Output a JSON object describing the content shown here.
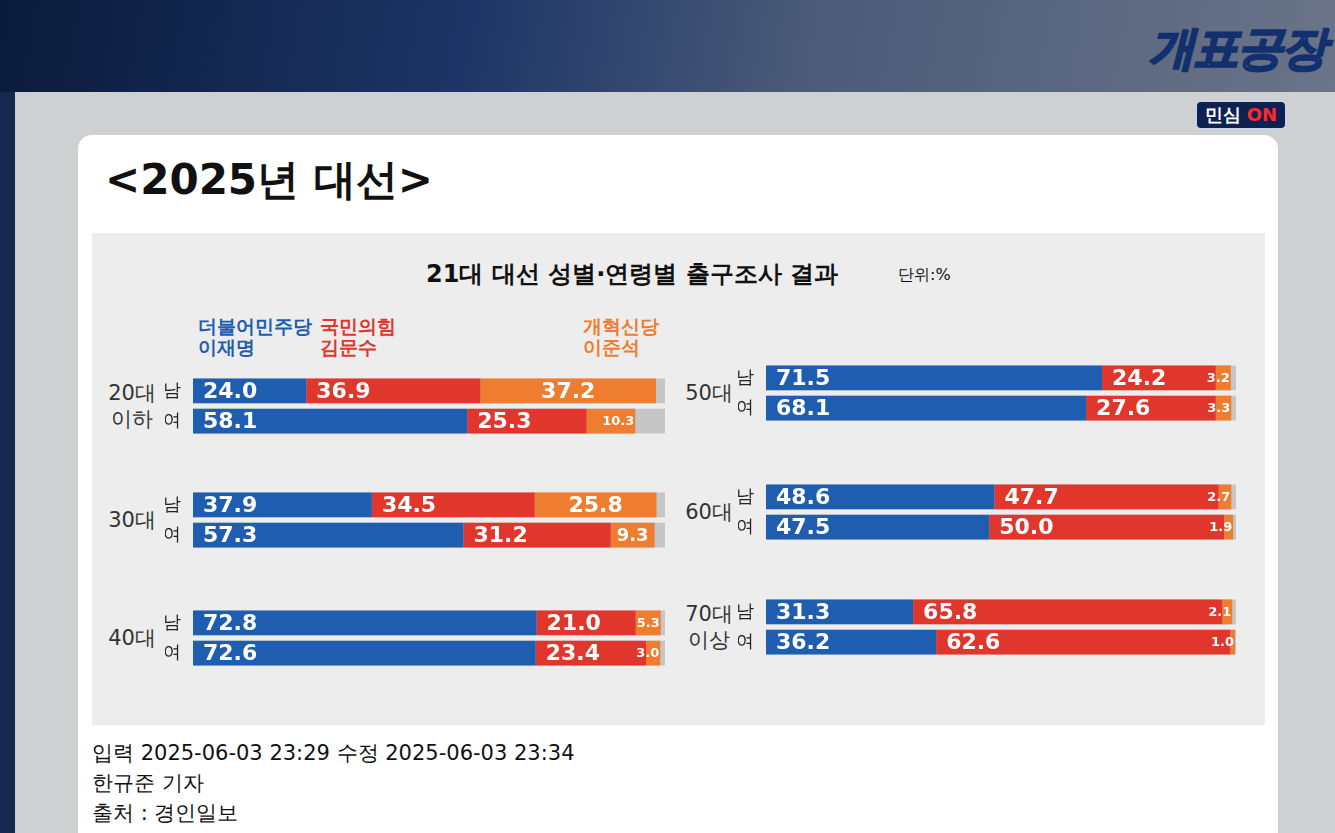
{
  "header": {
    "title": "<2025년 대선>",
    "logo": "개표공장",
    "logo_sub": "민심",
    "logo_badge": "ON"
  },
  "chart_data": {
    "type": "bar",
    "title": "21대 대선 성별·연령별 출구조사 결과",
    "unit": "단위:%",
    "orientation": "horizontal",
    "stacked": true,
    "data_labels": true,
    "tick_labels": "y",
    "grid": false,
    "groups": [
      "20대 이하",
      "30대",
      "40대",
      "50대",
      "60대",
      "70대 이상"
    ],
    "categories": [
      "남",
      "여",
      "남",
      "여",
      "남",
      "여",
      "남",
      "여",
      "남",
      "여",
      "남",
      "여"
    ],
    "xlim": [
      0,
      100
    ],
    "series": [
      {
        "name": "더불어민주당 이재명",
        "color": "#1f5db0",
        "values": [
          24.0,
          58.1,
          37.9,
          57.3,
          72.8,
          72.6,
          71.5,
          68.1,
          48.6,
          47.5,
          31.3,
          36.2
        ],
        "value_labels": [
          "24.0",
          "58.1",
          "37.9",
          "57.3",
          "72.8",
          "72.6",
          "71.5",
          "68.1",
          "48.6",
          "47.5",
          "31.3",
          "36.2"
        ]
      },
      {
        "name": "국민의힘 김문수",
        "color": "#e0362c",
        "values": [
          36.9,
          25.3,
          34.5,
          31.2,
          21.0,
          23.4,
          24.2,
          27.6,
          47.7,
          50.0,
          65.8,
          62.6
        ],
        "value_labels": [
          "36.9",
          "25.3",
          "34.5",
          "31.2",
          "21.0",
          "23.4",
          "24.2",
          "27.6",
          "47.7",
          "50.0",
          "65.8",
          "62.6"
        ]
      },
      {
        "name": "개혁신당 이준석",
        "color": "#ef7d30",
        "values": [
          37.2,
          10.3,
          25.8,
          9.3,
          5.3,
          3.0,
          3.2,
          3.3,
          2.7,
          1.9,
          2.1,
          1.0
        ],
        "value_labels": [
          "37.2",
          "10.3",
          "25.8",
          "9.3",
          "5.3",
          "3.0",
          "3.2",
          "3.3",
          "2.7",
          "1.9",
          "2.1",
          "1.0"
        ]
      }
    ]
  },
  "footer": {
    "lines": [
      "입력 2025-06-03 23:29 수정 2025-06-03 23:34",
      "한규준 기자",
      "출처 : 경인일보"
    ]
  }
}
